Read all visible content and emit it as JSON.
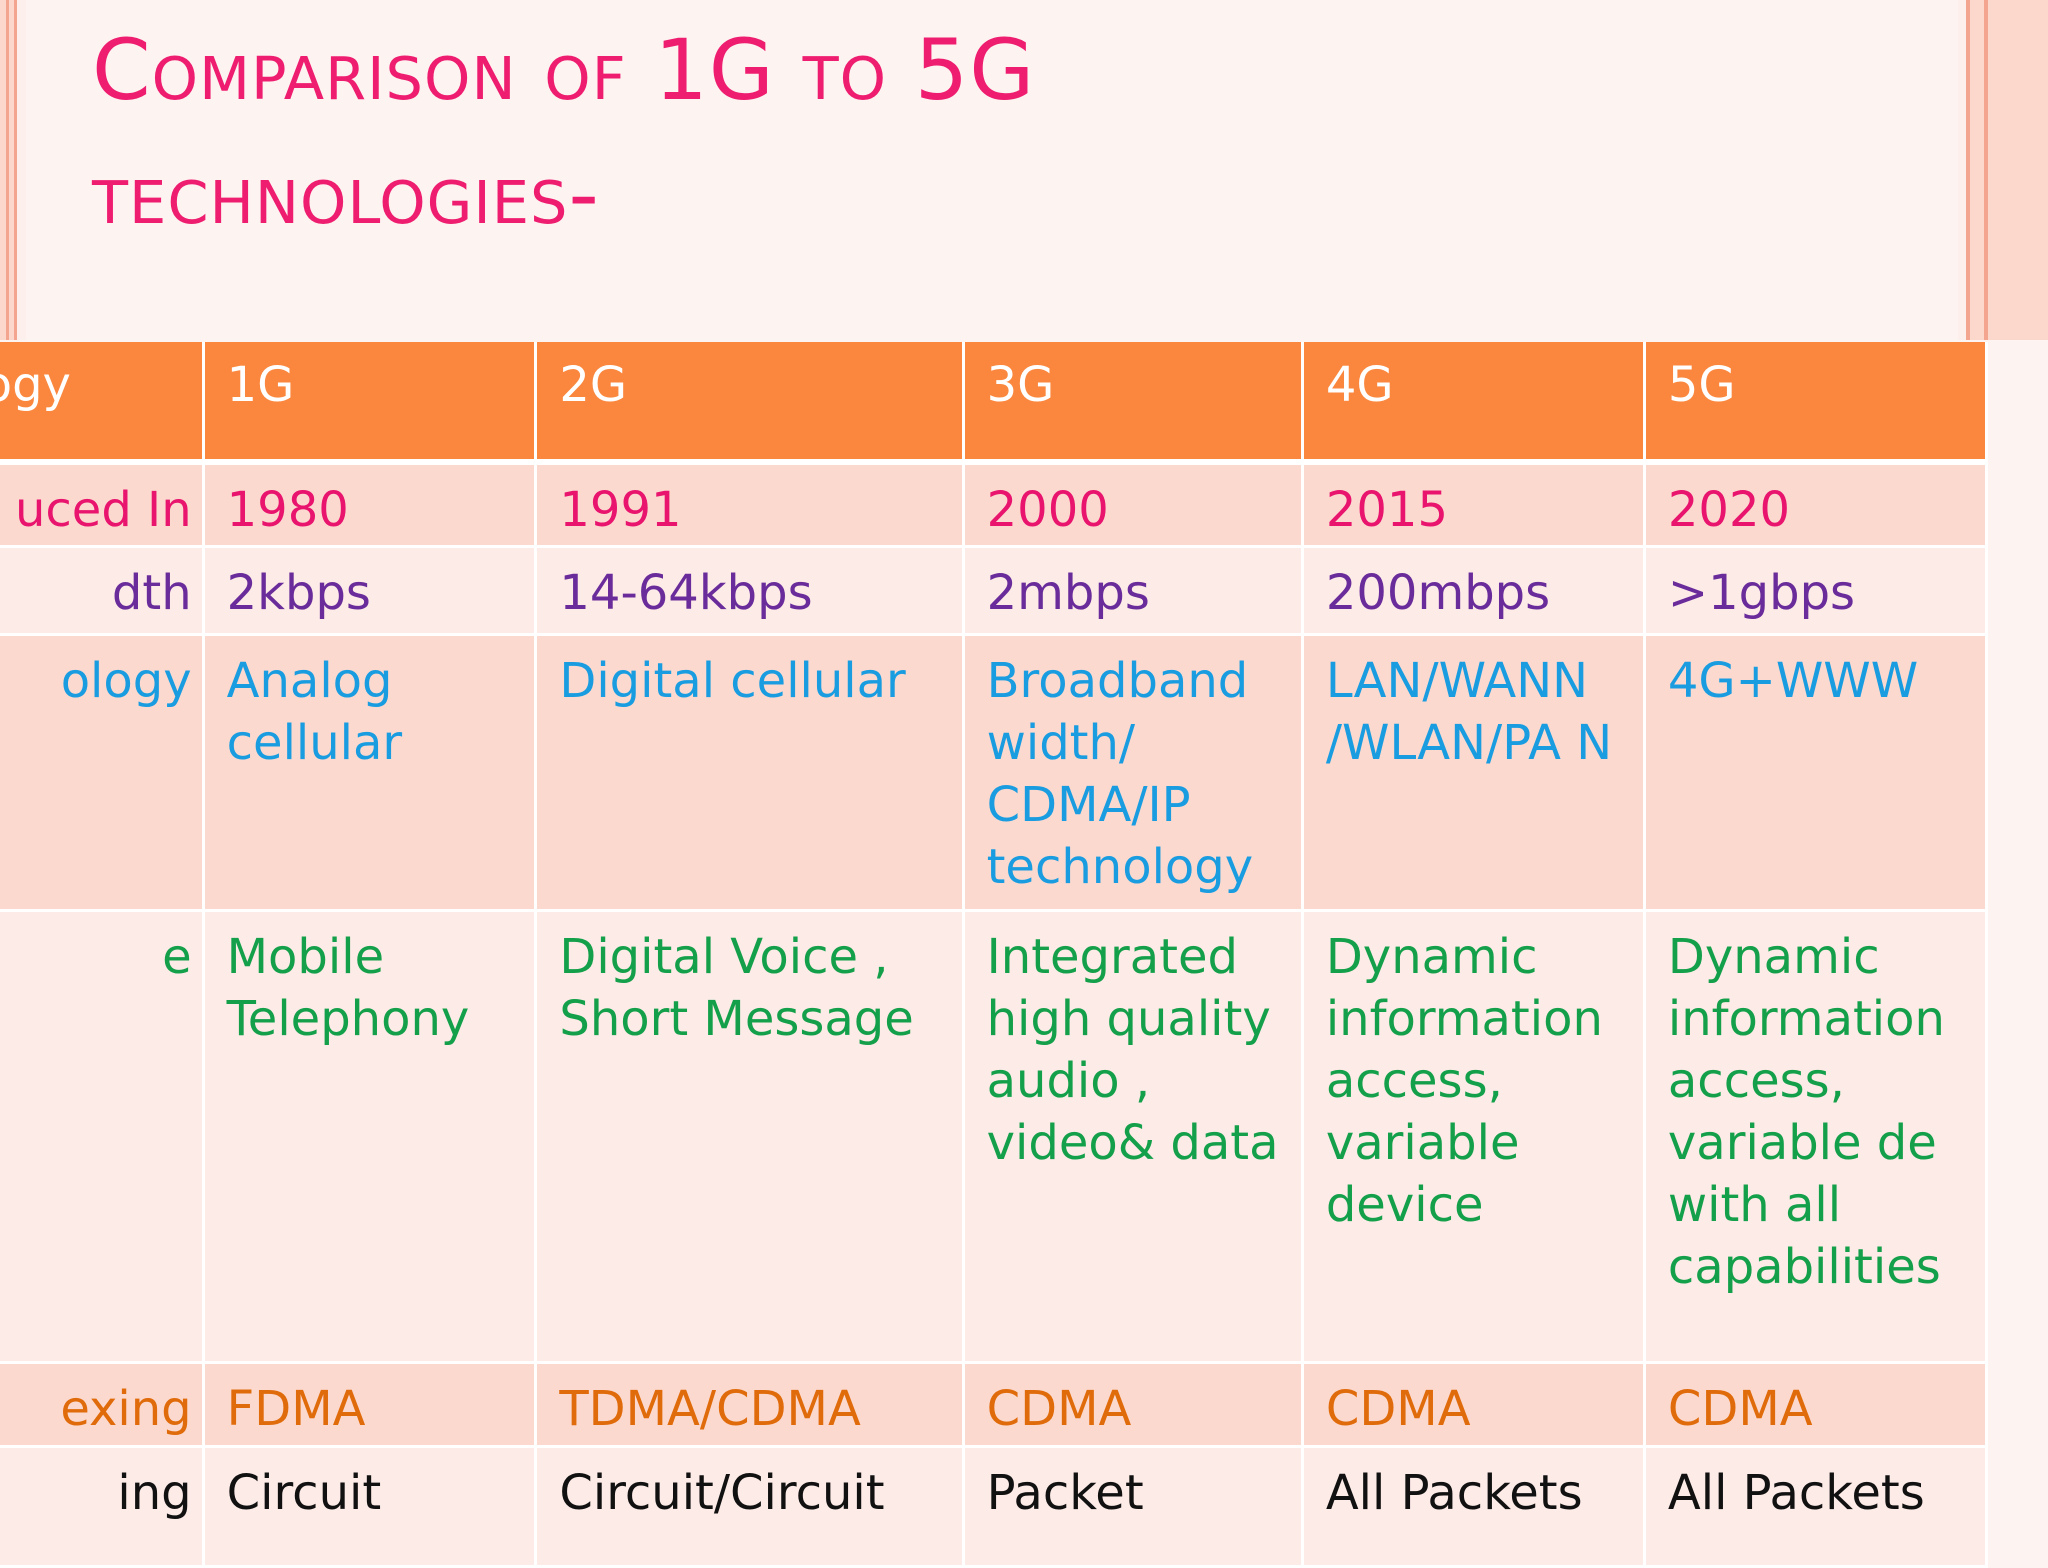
{
  "title": {
    "line1": "Comparison of 1G to 5G",
    "line2": "technologies-"
  },
  "table": {
    "header_label": "ology",
    "columns": [
      "1G",
      "2G",
      "3G",
      "4G",
      "5G"
    ],
    "rows": [
      {
        "label": "uced In",
        "cells": [
          "1980",
          "1991",
          "2000",
          "2015",
          "2020"
        ]
      },
      {
        "label": "dth",
        "cells": [
          "2kbps",
          "14-64kbps",
          "2mbps",
          "200mbps",
          ">1gbps"
        ]
      },
      {
        "label": "ology",
        "cells": [
          "Analog cellular",
          "Digital cellular",
          "Broadband width/ CDMA/IP technology",
          "LAN/WANN /WLAN/PA N",
          "4G+WWW"
        ]
      },
      {
        "label": "e",
        "cells": [
          "Mobile Telephony",
          "Digital Voice , Short Message",
          "Integrated high quality audio , video& data",
          "Dynamic information access, variable device",
          "Dynamic information access, variable de with all capabilities"
        ]
      },
      {
        "label": "exing",
        "cells": [
          "FDMA",
          "TDMA/CDMA",
          "CDMA",
          "CDMA",
          "CDMA"
        ]
      },
      {
        "label": "ing",
        "cells": [
          "Circuit",
          "Circuit/Circuit",
          "Packet",
          "All Packets",
          "All Packets"
        ]
      }
    ]
  }
}
